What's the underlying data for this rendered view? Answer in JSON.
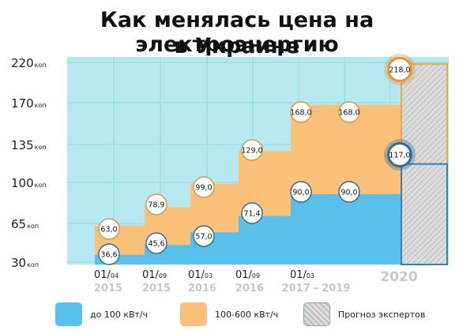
{
  "title": {
    "line1": "Как менялась цена на электроэнергию",
    "line2": "в Украине"
  },
  "colors": {
    "plot_bg": "#b6e9ef",
    "grid": "#8ed8e2",
    "blue": "#59bfeb",
    "orange": "#fbc07a",
    "forecast_fill": "#dcdcdc",
    "forecast_stroke_orange": "#f0a844",
    "forecast_stroke_blue": "#3a80a8",
    "circle_orange": "#e8953a",
    "circle_blue": "#2f6f9c",
    "year_text": "#c8c8c8",
    "dark_badge": "#1f5f8e"
  },
  "chart_data": {
    "type": "area",
    "title": "Как менялась цена на электроэнергию в Украине",
    "y_axis": {
      "ticks": [
        30,
        65,
        100,
        135,
        170,
        220
      ],
      "unit": "коп",
      "scale": "ordinal (ticks equally spaced)"
    },
    "categories": [
      {
        "date": "01/04",
        "year": "2015"
      },
      {
        "date": "01/09",
        "year": "2015"
      },
      {
        "date": "01/03",
        "year": "2016"
      },
      {
        "date": "01/09",
        "year": "2016"
      },
      {
        "date": "01/03",
        "year": "2017 - 2019"
      },
      {
        "date": "",
        "year": "2020"
      }
    ],
    "series": [
      {
        "name": "до 100 кВт/ч",
        "values": [
          36.6,
          45.6,
          57.0,
          71.4,
          90.0,
          117.0
        ]
      },
      {
        "name": "100-600 кВт/ч",
        "values": [
          63.0,
          78.9,
          99.0,
          129.0,
          168.0,
          218.0
        ]
      }
    ],
    "data_labels": {
      "low": [
        "36,6",
        "45,6",
        "57,0",
        "71,4",
        "90,0",
        "90,0",
        "117,0"
      ],
      "high": [
        "63,0",
        "78,9",
        "99,0",
        "129,0",
        "168,0",
        "168,0",
        "218,0"
      ]
    },
    "forecast_category": "2020",
    "legend_position": "bottom",
    "grid": true
  },
  "legend": [
    {
      "label": "до 100 кВт/ч",
      "kind": "blue"
    },
    {
      "label": "100-600 кВт/ч",
      "kind": "orange"
    },
    {
      "label": "Прогноз экспертов",
      "kind": "forecast"
    }
  ]
}
